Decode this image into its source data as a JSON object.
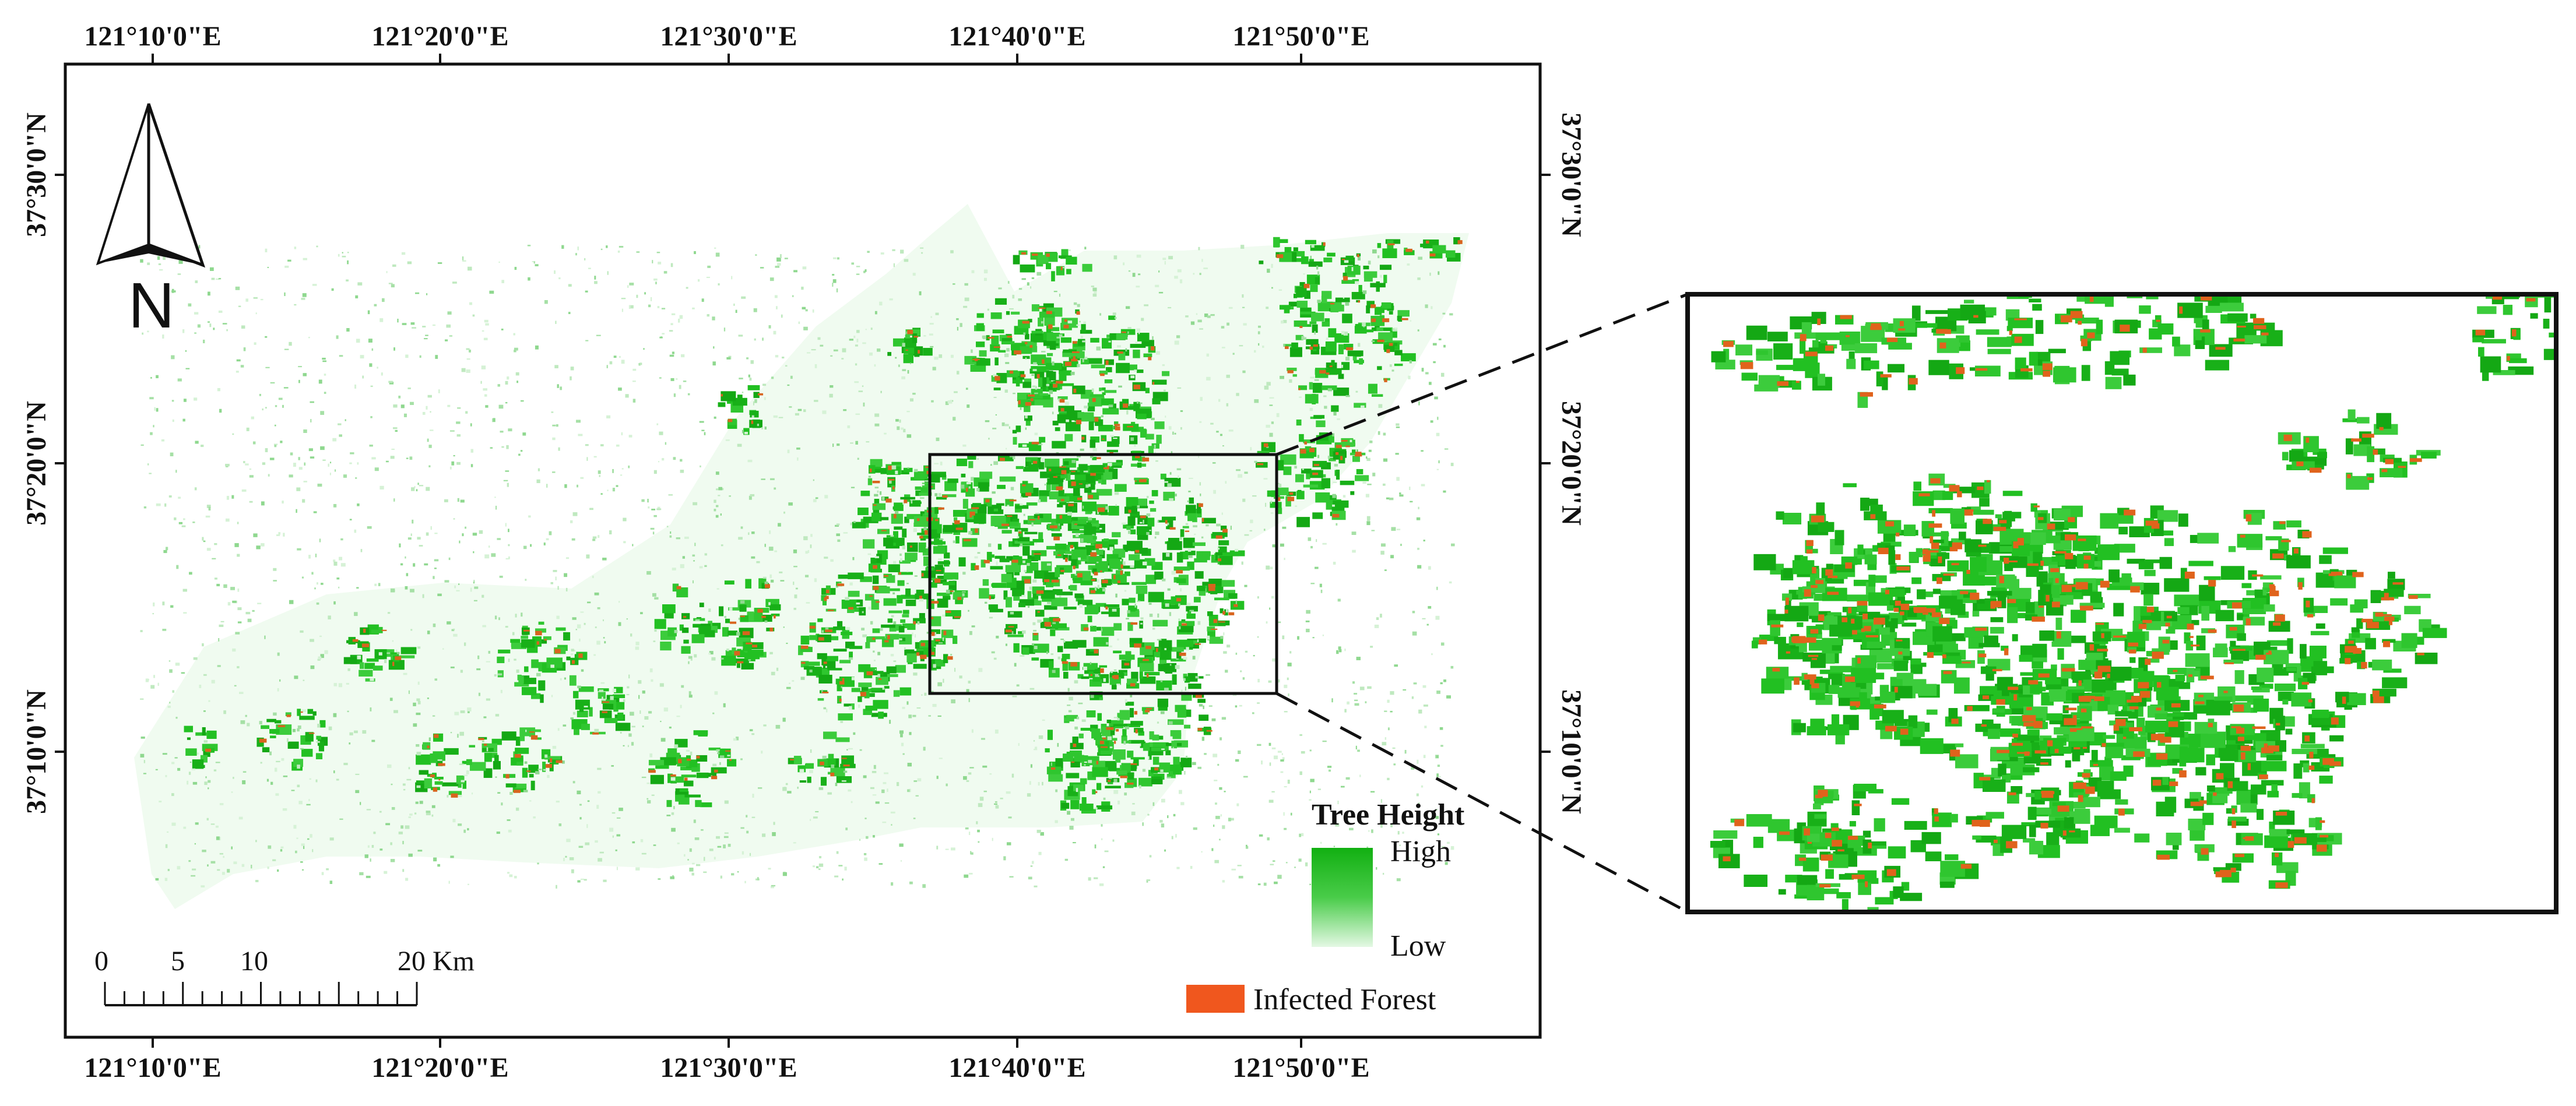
{
  "map": {
    "top_lon_labels": [
      "121°10'0\"E",
      "121°20'0\"E",
      "121°30'0\"E",
      "121°40'0\"E",
      "121°50'0\"E"
    ],
    "bottom_lon_labels": [
      "121°10'0\"E",
      "121°20'0\"E",
      "121°30'0\"E",
      "121°40'0\"E",
      "121°50'0\"E"
    ],
    "left_lat_labels": [
      "37°30'0\"N",
      "37°20'0\"N",
      "37°10'0\"N"
    ],
    "right_lat_labels": [
      "37°30'0\"N",
      "37°20'0\"N",
      "37°10'0\"N"
    ],
    "north_label": "N",
    "scale_labels": [
      "0",
      "5",
      "10",
      "20 Km"
    ],
    "legend": {
      "title": "Tree Height",
      "high": "High",
      "low": "Low",
      "infected": "Infected Forest"
    }
  },
  "colors": {
    "forest_high": "#1db81d",
    "forest_low": "#c8f0c8",
    "infected": "#e8641a",
    "frame": "#111111"
  }
}
